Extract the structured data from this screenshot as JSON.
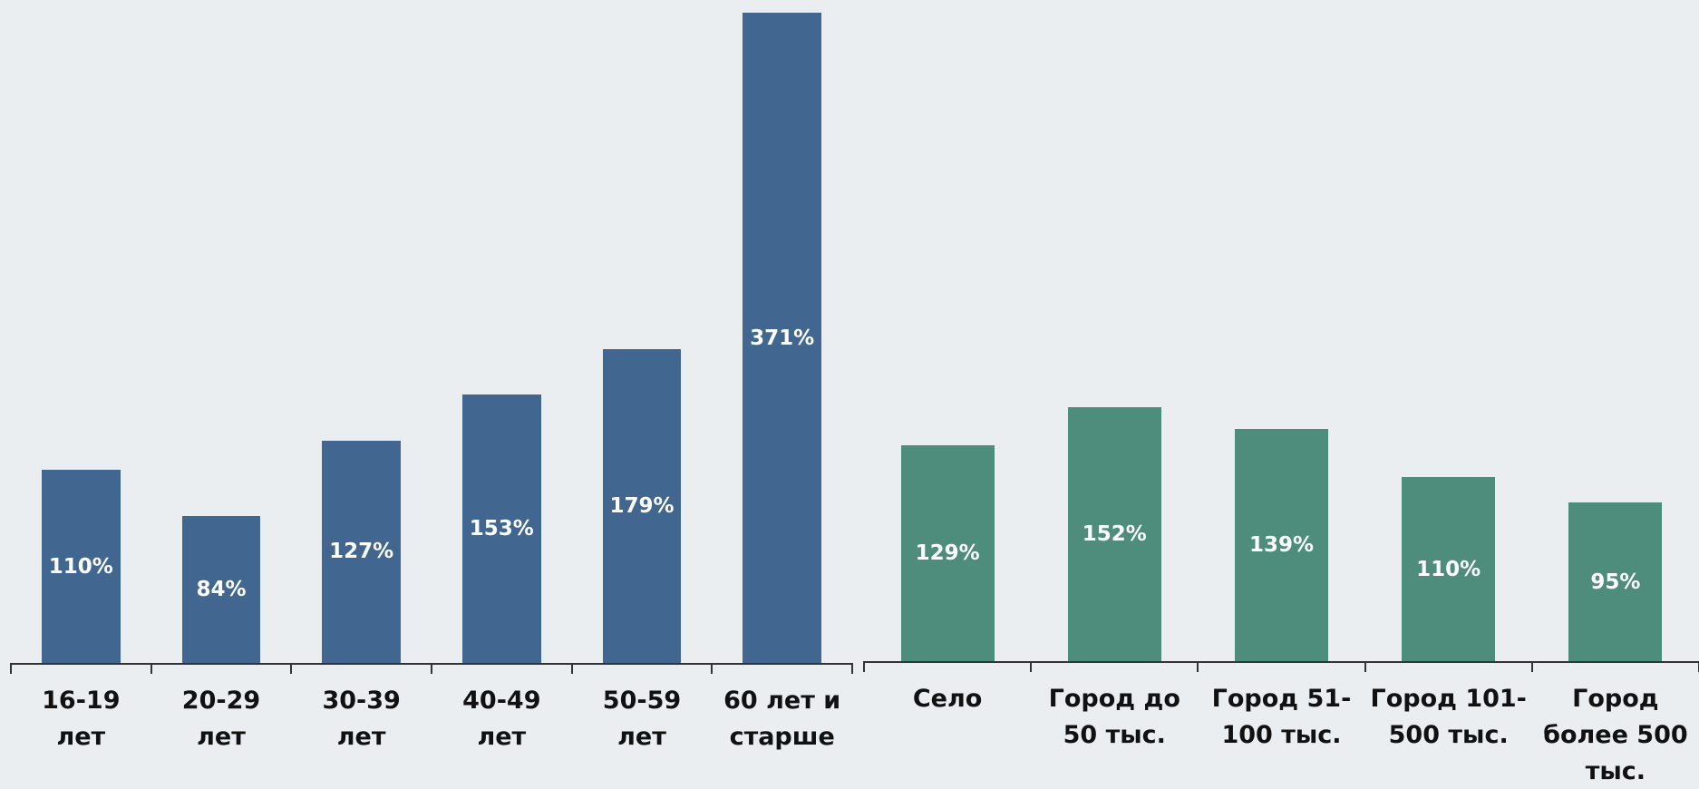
{
  "chart_data": [
    {
      "type": "bar",
      "color": "#41668f",
      "categories": [
        "16-19 лет",
        "20-29 лет",
        "30-39 лет",
        "40-49 лет",
        "50-59 лет",
        "60 лет и старше"
      ],
      "values": [
        110,
        84,
        127,
        153,
        179,
        371
      ],
      "value_labels": [
        "110%",
        "84%",
        "127%",
        "153%",
        "179%",
        "371%"
      ]
    },
    {
      "type": "bar",
      "color": "#4e8c7b",
      "categories": [
        "Село",
        "Город до 50 тыс.",
        "Город 51-100 тыс.",
        "Город 101-500 тыс.",
        "Город более 500 тыс."
      ],
      "values": [
        129,
        152,
        139,
        110,
        95
      ],
      "value_labels": [
        "129%",
        "152%",
        "139%",
        "110%",
        "95%"
      ]
    }
  ]
}
